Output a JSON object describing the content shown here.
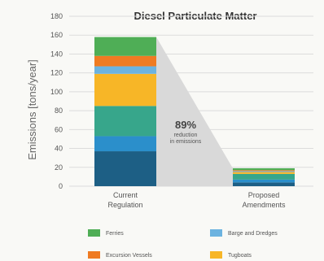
{
  "chart_data": {
    "type": "bar",
    "title": "Diesel Particulate Matter",
    "ylabel": "Emissions [tons/year]",
    "xlabel": "",
    "ylim": [
      0,
      180
    ],
    "yticks": [
      0,
      20,
      40,
      60,
      80,
      100,
      120,
      140,
      160,
      180
    ],
    "grid": true,
    "categories": [
      "Current Regulation",
      "Proposed Amendments"
    ],
    "category_lines": [
      [
        "Current",
        "Regulation"
      ],
      [
        "Proposed",
        "Amendments"
      ]
    ],
    "series": [
      {
        "name": "",
        "color": "#1d5f85",
        "values": [
          37,
          4
        ]
      },
      {
        "name": "",
        "color": "#2b8fcb",
        "values": [
          16,
          3
        ]
      },
      {
        "name": "",
        "color": "#37a68b",
        "values": [
          32,
          6
        ]
      },
      {
        "name": "Tugboats",
        "color": "#f7b627",
        "values": [
          34,
          2
        ]
      },
      {
        "name": "Barge and Dredges",
        "color": "#6cb3e0",
        "values": [
          8,
          1
        ]
      },
      {
        "name": "Excursion Vessels",
        "color": "#ef7b22",
        "values": [
          11,
          1
        ]
      },
      {
        "name": "Ferries",
        "color": "#4fae56",
        "values": [
          20,
          2
        ]
      }
    ],
    "annotation": {
      "value": "89%",
      "lines": [
        "reduction",
        "in emissions"
      ]
    },
    "legend": [
      {
        "label": "Ferries",
        "color": "#4fae56"
      },
      {
        "label": "Barge and Dredges",
        "color": "#6cb3e0"
      },
      {
        "label": "Excursion Vessels",
        "color": "#ef7b22"
      },
      {
        "label": "Tugboats",
        "color": "#f7b627"
      }
    ]
  }
}
